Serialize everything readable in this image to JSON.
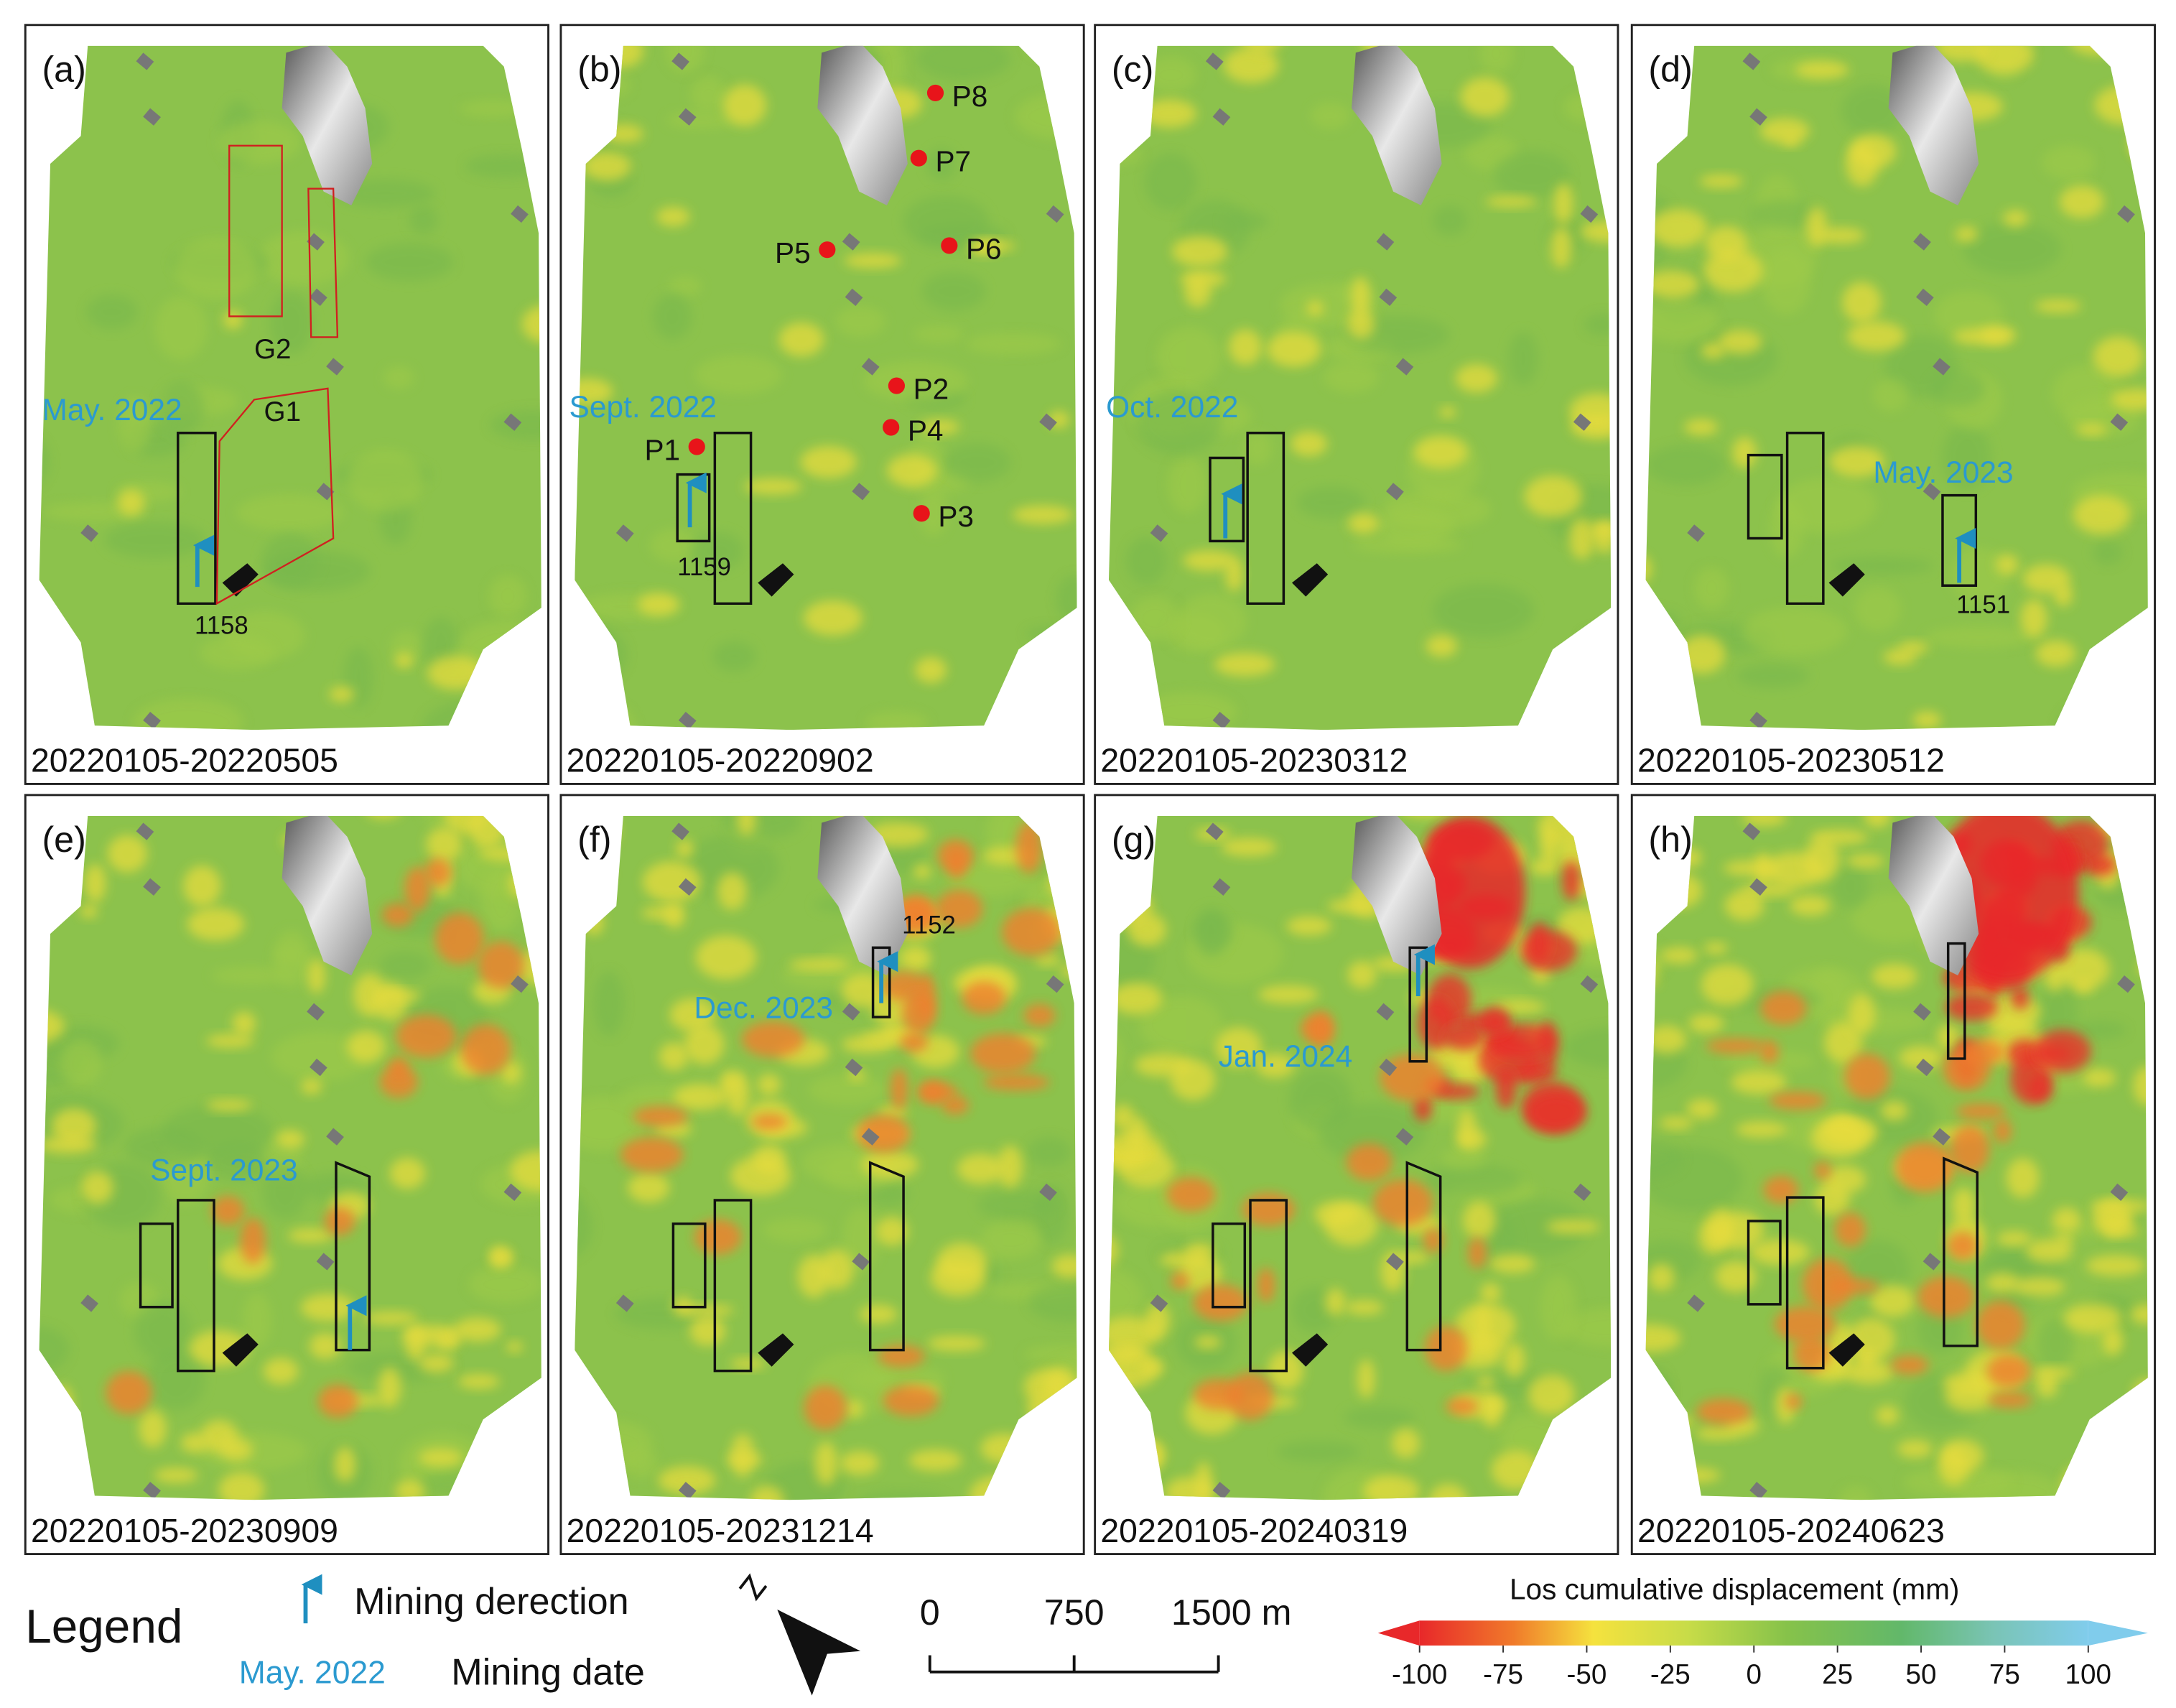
{
  "panels": [
    {
      "label": "(a)",
      "period": "20220105-20220505",
      "mining_date": "May. 2022",
      "face": "1158",
      "zones": [
        "G2",
        "G1"
      ]
    },
    {
      "label": "(b)",
      "period": "20220105-20220902",
      "mining_date": "Sept. 2022",
      "face": "1159",
      "points": [
        "P8",
        "P7",
        "P5",
        "P6",
        "P2",
        "P1",
        "P4",
        "P3"
      ]
    },
    {
      "label": "(c)",
      "period": "20220105-20230312",
      "mining_date": "Oct. 2022"
    },
    {
      "label": "(d)",
      "period": "20220105-20230512",
      "mining_date": "May. 2023",
      "face": "1151"
    },
    {
      "label": "(e)",
      "period": "20220105-20230909",
      "mining_date": "Sept. 2023"
    },
    {
      "label": "(f)",
      "period": "20220105-20231214",
      "mining_date": "Dec. 2023",
      "face": "1152"
    },
    {
      "label": "(g)",
      "period": "20220105-20240319",
      "mining_date": "Jan. 2024"
    },
    {
      "label": "(h)",
      "period": "20220105-20240623"
    }
  ],
  "legend": {
    "title": "Legend",
    "direction": "Mining derection",
    "date_sample": "May. 2022",
    "date": "Mining date"
  },
  "scale_bar": {
    "lim": [
      0,
      1500
    ],
    "ticks": [
      0,
      750,
      {
        "value": 1500,
        "label": "1500 m"
      }
    ]
  },
  "colorbar": {
    "title": "Los cumulative displacement (mm)",
    "lim": [
      -100,
      100
    ],
    "ticks": [
      -100,
      -75,
      -50,
      -25,
      0,
      25,
      50,
      75,
      100
    ]
  }
}
